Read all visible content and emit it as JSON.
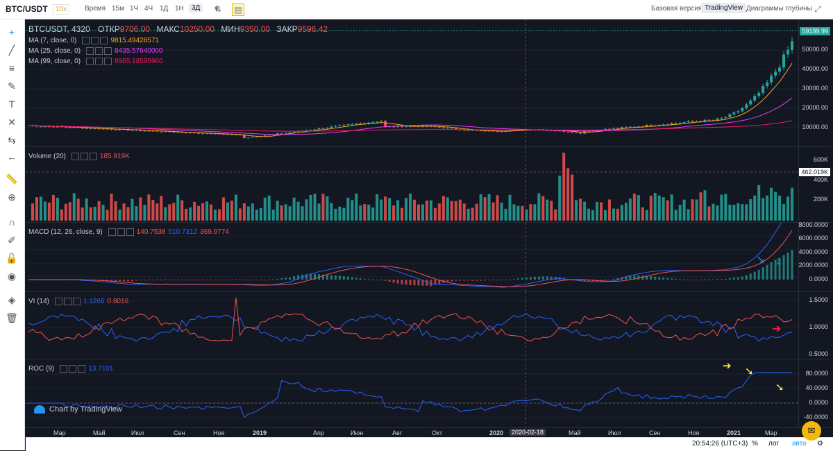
{
  "topbar": {
    "symbol": "BTC/USDT",
    "multiplier": "10x",
    "time_label": "Время",
    "timeframes": [
      "15м",
      "1Ч",
      "4Ч",
      "1Д",
      "1Н",
      "3Д"
    ],
    "active_timeframe": "3Д",
    "views": [
      "Базовая версия",
      "TradingView",
      "Диаграммы глубины"
    ],
    "active_view": "TradingView"
  },
  "main_legend": {
    "title": "BTCUSDT, 4320",
    "open_label": "ОТКР",
    "open": "9706.00",
    "high_label": "МАКС",
    "high": "10250.00",
    "low_label": "МИН",
    "low": "9350.00",
    "close_label": "ЗАКР",
    "close": "9596.42",
    "ma": [
      {
        "name": "MA (7, close, 0)",
        "value": "9815.49428571",
        "color": "#f5a623"
      },
      {
        "name": "MA (25, close, 0)",
        "value": "8435.57640000",
        "color": "#e040fb"
      },
      {
        "name": "MA (99, close, 0)",
        "value": "8965.18595960",
        "color": "#e91e63"
      }
    ]
  },
  "price_axis": [
    "50000.00",
    "40000.00",
    "30000.00",
    "20000.00",
    "10000.00"
  ],
  "last_price": "59199.99",
  "volume": {
    "title": "Volume (20)",
    "value": "185.919K",
    "axis": [
      "600K",
      "400K",
      "200K"
    ],
    "tag": "462.019K"
  },
  "macd": {
    "title": "MACD (12, 26, close, 9)",
    "v1": "140.7538",
    "v2": "510.7312",
    "v3": "369.9774",
    "axis": [
      "8000.0000",
      "6000.0000",
      "4000.0000",
      "2000.0000",
      "0.0000"
    ]
  },
  "vi": {
    "title": "VI (14)",
    "v1": "1.1266",
    "v2": "0.8016",
    "axis": [
      "1.5000",
      "1.0000",
      "0.5000"
    ]
  },
  "roc": {
    "title": "ROC (9)",
    "value": "13.7101",
    "axis": [
      "80.0000",
      "40.0000",
      "0.0000",
      "-40.0000"
    ]
  },
  "time_axis": [
    "Мар",
    "Май",
    "Июл",
    "Сен",
    "Ноя",
    "2019",
    "Апр",
    "Июн",
    "Авг",
    "Окт",
    "2020",
    "2020-02-18",
    "Май",
    "Июл",
    "Сен",
    "Ноя",
    "2021",
    "Мар"
  ],
  "watermark": "Chart by TradingView",
  "bottom": {
    "clock": "20:54:26 (UTC+3)",
    "percent": "%",
    "log": "лог",
    "auto": "авто"
  },
  "colors": {
    "up": "#26a69a",
    "down": "#ef5350",
    "bg": "#131722"
  }
}
